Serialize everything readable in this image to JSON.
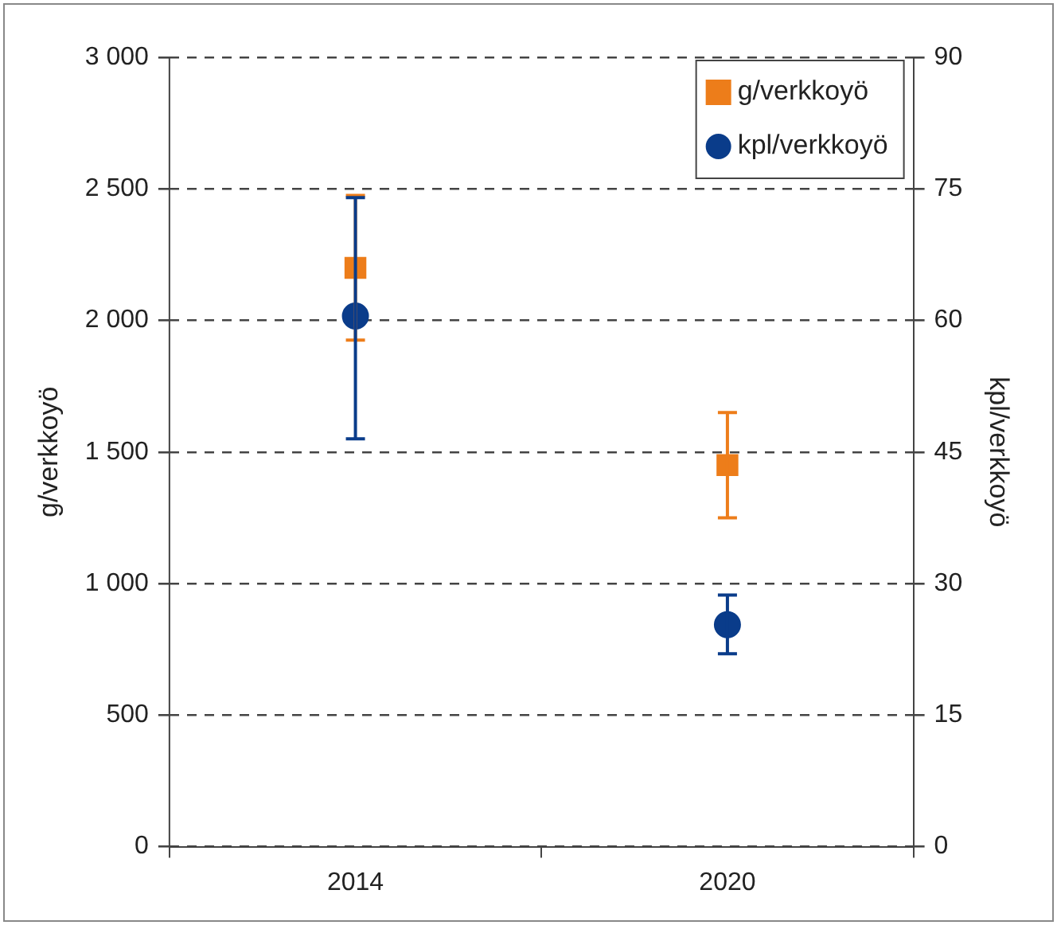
{
  "chart_data": {
    "type": "scatter",
    "categories": [
      "2014",
      "2020"
    ],
    "ylabel": "g/verkkoyö",
    "y2label": "kpl/verkkoyö",
    "ylim": [
      0,
      3000
    ],
    "yticks": [
      {
        "value": 0,
        "label": "0"
      },
      {
        "value": 500,
        "label": "500"
      },
      {
        "value": 1000,
        "label": "1 000"
      },
      {
        "value": 1500,
        "label": "1 500"
      },
      {
        "value": 2000,
        "label": "2 000"
      },
      {
        "value": 2500,
        "label": "2 500"
      },
      {
        "value": 3000,
        "label": "3 000"
      }
    ],
    "y2lim": [
      0,
      90
    ],
    "y2ticks": [
      0,
      15,
      30,
      45,
      60,
      75,
      90
    ],
    "grid": "y",
    "legend": "top right",
    "series": [
      {
        "name": "g/verkkoyö",
        "color": "#ed7d1a",
        "marker": "square",
        "values": [
          2200,
          1450
        ],
        "errors": [
          [
            1925,
            2475
          ],
          [
            1250,
            1650
          ]
        ]
      },
      {
        "name": "kpl/verkkoyö",
        "color": "#0a3c8a",
        "marker": "circle",
        "axis": "y2",
        "values": [
          60.5,
          25.3
        ],
        "errors": [
          [
            46.5,
            74
          ],
          [
            22,
            28.7
          ]
        ]
      }
    ]
  }
}
